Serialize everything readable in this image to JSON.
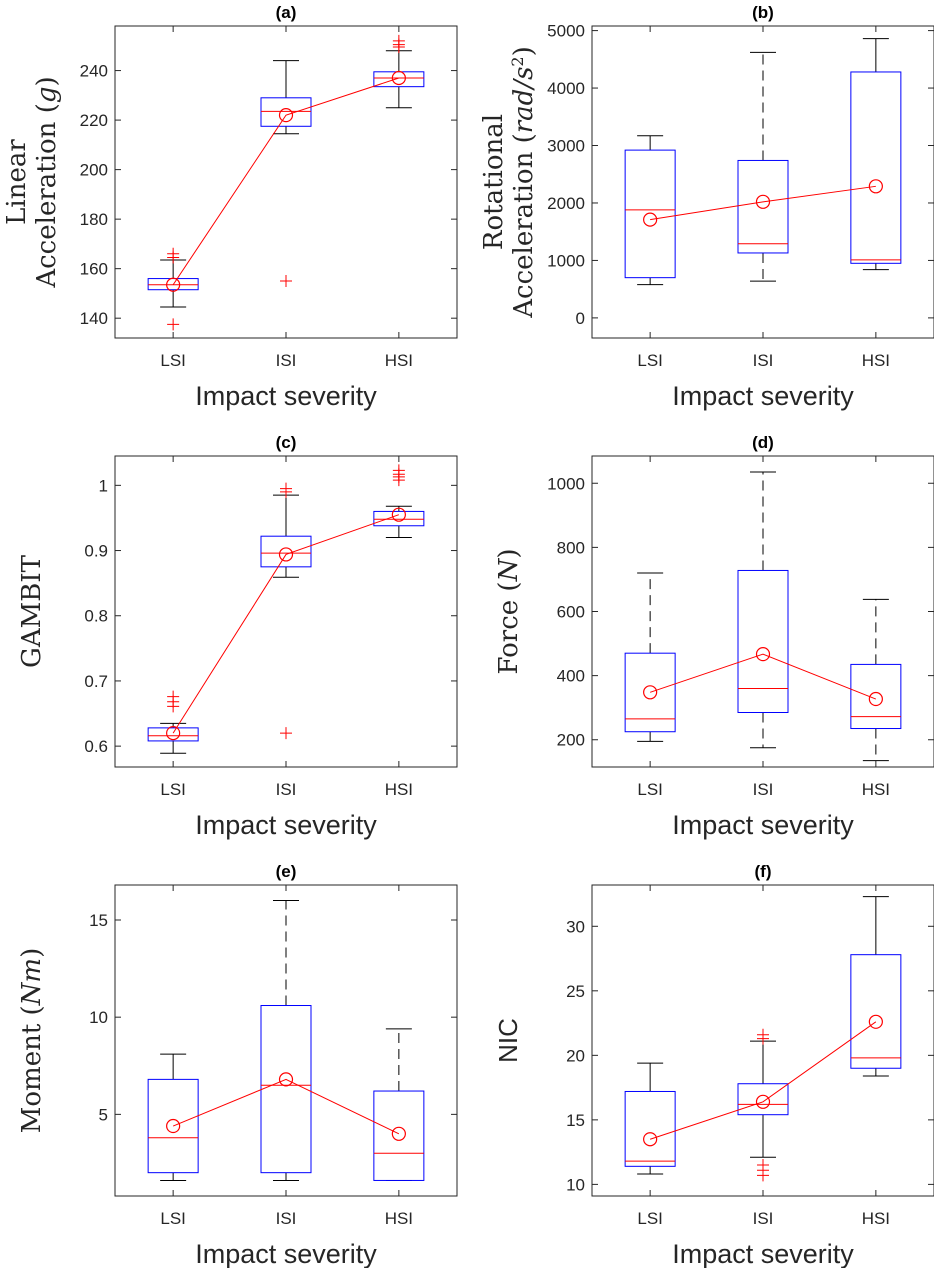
{
  "figure": {
    "xlabel": "Impact severity"
  },
  "colors": {
    "box": "#0000ff",
    "median": "#ff0000",
    "mean": "#ff0000",
    "outlier": "#ff0000",
    "whisker": "#000000"
  },
  "chart_data": [
    {
      "id": "a",
      "title": "(a)",
      "type": "box",
      "ylabel_lines": [
        "Linear",
        "Acceleration ($g$)"
      ],
      "ylabel_parts": [
        [
          "Linear"
        ],
        [
          "Acceleration (",
          {
            "i": "g"
          },
          ")"
        ]
      ],
      "ylim": [
        132,
        258
      ],
      "yticks": [
        140,
        160,
        180,
        200,
        220,
        240
      ],
      "categories": [
        "LSI",
        "ISI",
        "HSI"
      ],
      "boxes": [
        {
          "q1": 151.5,
          "median": 153.5,
          "q3": 156.0,
          "whisker_low": 144.5,
          "whisker_high": 163.5,
          "mean": 153.5,
          "outliers": [
            137.5,
            164.5,
            166.0
          ],
          "whisker_style": "solid"
        },
        {
          "q1": 217.5,
          "median": 223.5,
          "q3": 229.0,
          "whisker_low": 214.5,
          "whisker_high": 244.0,
          "mean": 222.0,
          "outliers": [
            155.0
          ],
          "whisker_style": "solid"
        },
        {
          "q1": 233.5,
          "median": 237.0,
          "q3": 239.5,
          "whisker_low": 225.0,
          "whisker_high": 248.0,
          "mean": 237.0,
          "outliers": [
            249.5,
            250.5,
            252.0
          ],
          "whisker_style": "solid"
        }
      ]
    },
    {
      "id": "b",
      "title": "(b)",
      "type": "box",
      "ylabel_lines": [
        "Rotational",
        "Acceleration ($rad/s^2$)"
      ],
      "ylabel_parts": [
        [
          "Rotational"
        ],
        [
          "Acceleration (",
          {
            "i": "rad/s"
          },
          {
            "sup": "2"
          },
          ")"
        ]
      ],
      "ylim": [
        -350,
        5080
      ],
      "yticks": [
        0,
        1000,
        2000,
        3000,
        4000,
        5000
      ],
      "categories": [
        "LSI",
        "ISI",
        "HSI"
      ],
      "boxes": [
        {
          "q1": 700,
          "median": 1880,
          "q3": 2920,
          "whisker_low": 580,
          "whisker_high": 3170,
          "mean": 1710,
          "outliers": [],
          "whisker_style": "solid"
        },
        {
          "q1": 1130,
          "median": 1290,
          "q3": 2740,
          "whisker_low": 640,
          "whisker_high": 4620,
          "mean": 2020,
          "outliers": [],
          "whisker_style": "dashed"
        },
        {
          "q1": 950,
          "median": 1010,
          "q3": 4280,
          "whisker_low": 840,
          "whisker_high": 4860,
          "mean": 2290,
          "outliers": [],
          "whisker_style": "solid"
        }
      ]
    },
    {
      "id": "c",
      "title": "(c)",
      "type": "box",
      "ylabel_lines": [
        "GAMBIT"
      ],
      "ylabel_parts": [
        [
          "GAMBIT"
        ]
      ],
      "ylim": [
        0.568,
        1.045
      ],
      "yticks": [
        0.6,
        0.7,
        0.8,
        0.9,
        1
      ],
      "categories": [
        "LSI",
        "ISI",
        "HSI"
      ],
      "boxes": [
        {
          "q1": 0.608,
          "median": 0.616,
          "q3": 0.628,
          "whisker_low": 0.589,
          "whisker_high": 0.635,
          "mean": 0.62,
          "outliers": [
            0.661,
            0.668,
            0.676
          ],
          "whisker_style": "solid"
        },
        {
          "q1": 0.875,
          "median": 0.896,
          "q3": 0.922,
          "whisker_low": 0.859,
          "whisker_high": 0.985,
          "mean": 0.894,
          "outliers": [
            0.62,
            0.99,
            0.995
          ],
          "whisker_style": "solid"
        },
        {
          "q1": 0.938,
          "median": 0.948,
          "q3": 0.96,
          "whisker_low": 0.92,
          "whisker_high": 0.968,
          "mean": 0.955,
          "outliers": [
            1.008,
            1.013,
            1.017,
            1.023
          ],
          "whisker_style": "solid"
        }
      ]
    },
    {
      "id": "d",
      "title": "(d)",
      "type": "box",
      "ylabel_lines": [
        "Force ($N$)"
      ],
      "ylabel_parts": [
        [
          "Force (",
          {
            "i": "N"
          },
          ")"
        ]
      ],
      "ylim": [
        115,
        1085
      ],
      "yticks": [
        200,
        400,
        600,
        800,
        1000
      ],
      "categories": [
        "LSI",
        "ISI",
        "HSI"
      ],
      "boxes": [
        {
          "q1": 225,
          "median": 265,
          "q3": 470,
          "whisker_low": 195,
          "whisker_high": 720,
          "mean": 348,
          "outliers": [],
          "whisker_style": "dashed"
        },
        {
          "q1": 285,
          "median": 360,
          "q3": 728,
          "whisker_low": 175,
          "whisker_high": 1035,
          "mean": 467,
          "outliers": [],
          "whisker_style": "dashed"
        },
        {
          "q1": 235,
          "median": 272,
          "q3": 435,
          "whisker_low": 135,
          "whisker_high": 638,
          "mean": 327,
          "outliers": [],
          "whisker_style": "dashed"
        }
      ]
    },
    {
      "id": "e",
      "title": "(e)",
      "type": "box",
      "ylabel_lines": [
        "Moment ($Nm$)"
      ],
      "ylabel_parts": [
        [
          "Moment (",
          {
            "i": "Nm"
          },
          ")"
        ]
      ],
      "ylim": [
        0.8,
        16.8
      ],
      "yticks": [
        5,
        10,
        15
      ],
      "categories": [
        "LSI",
        "ISI",
        "HSI"
      ],
      "boxes": [
        {
          "q1": 2.0,
          "median": 3.8,
          "q3": 6.8,
          "whisker_low": 1.6,
          "whisker_high": 8.1,
          "mean": 4.4,
          "outliers": [],
          "whisker_style": "solid"
        },
        {
          "q1": 2.0,
          "median": 6.5,
          "q3": 10.6,
          "whisker_low": 1.6,
          "whisker_high": 16.0,
          "mean": 6.8,
          "outliers": [],
          "whisker_style": "dashed"
        },
        {
          "q1": 1.6,
          "median": 3.0,
          "q3": 6.2,
          "whisker_low": 1.6,
          "whisker_high": 9.4,
          "mean": 4.0,
          "outliers": [],
          "whisker_style": "dashed"
        }
      ]
    },
    {
      "id": "f",
      "title": "(f)",
      "type": "box",
      "ylabel_lines": [
        "NIC"
      ],
      "ylabel_parts": [
        [
          "NIC"
        ]
      ],
      "ylim": [
        9.1,
        33.2
      ],
      "yticks": [
        10,
        15,
        20,
        25,
        30
      ],
      "categories": [
        "LSI",
        "ISI",
        "HSI"
      ],
      "boxes": [
        {
          "q1": 11.4,
          "median": 11.8,
          "q3": 17.2,
          "whisker_low": 10.8,
          "whisker_high": 19.4,
          "mean": 13.5,
          "outliers": [],
          "whisker_style": "solid"
        },
        {
          "q1": 15.4,
          "median": 16.2,
          "q3": 17.8,
          "whisker_low": 12.1,
          "whisker_high": 21.1,
          "mean": 16.4,
          "outliers": [
            10.7,
            11.1,
            11.5,
            21.3,
            21.6
          ],
          "whisker_style": "solid"
        },
        {
          "q1": 19.0,
          "median": 19.8,
          "q3": 27.8,
          "whisker_low": 18.4,
          "whisker_high": 32.3,
          "mean": 22.6,
          "outliers": [],
          "whisker_style": "solid"
        }
      ]
    }
  ]
}
